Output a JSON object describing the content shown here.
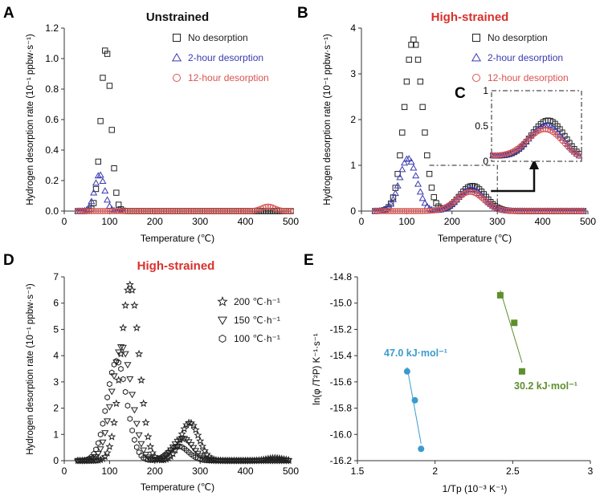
{
  "figure": {
    "panel_letters": [
      "A",
      "B",
      "C",
      "D",
      "E"
    ]
  },
  "colors": {
    "black": "#222222",
    "blue": "#3a3ab0",
    "red": "#d9534f",
    "title_red": "#d9302c",
    "teal": "#3b9bcf",
    "green": "#5e8f2e"
  },
  "chart_data": [
    {
      "id": "A",
      "type": "scatter",
      "title": "Unstrained",
      "xlabel": "Temperature (℃)",
      "ylabel": "Hydrogen desorption rate (10⁻¹ ppbw·s⁻¹)",
      "xlim": [
        0,
        500
      ],
      "ylim": [
        0,
        1.2
      ],
      "xticks": [
        "0",
        "100",
        "200",
        "300",
        "400",
        "500"
      ],
      "yticks": [
        "0.0",
        "0.2",
        "0.4",
        "0.6",
        "0.8",
        "1.0",
        "1.2"
      ],
      "legend": [
        "No desorption",
        "2-hour desorption",
        "12-hour desorption"
      ],
      "series": [
        {
          "name": "No desorption",
          "marker": "square",
          "peaks": [
            {
              "center": 92,
              "height": 1.07,
              "width": 11
            }
          ],
          "x_range": [
            30,
            500
          ]
        },
        {
          "name": "2-hour desorption",
          "marker": "triangle",
          "peaks": [
            {
              "center": 78,
              "height": 0.24,
              "width": 11
            }
          ],
          "x_range": [
            30,
            130
          ]
        },
        {
          "name": "12-hour desorption",
          "marker": "circle",
          "peaks": [
            {
              "center": 450,
              "height": 0.03,
              "width": 14
            }
          ],
          "x_range": [
            30,
            500
          ]
        }
      ]
    },
    {
      "id": "B",
      "type": "scatter",
      "title": "High-strained",
      "xlabel": "Temperature (℃)",
      "ylabel": "Hydrogen desorption rate (10⁻¹ ppbw·s⁻¹)",
      "xlim": [
        0,
        500
      ],
      "ylim": [
        0,
        4
      ],
      "xticks": [
        "0",
        "100",
        "200",
        "300",
        "400",
        "500"
      ],
      "yticks": [
        "0",
        "1",
        "2",
        "3",
        "4"
      ],
      "legend": [
        "No desorption",
        "2-hour desorption",
        "12-hour desorption"
      ],
      "series": [
        {
          "name": "No desorption",
          "marker": "square",
          "peaks": [
            {
              "center": 115,
              "height": 3.75,
              "width": 20
            },
            {
              "center": 245,
              "height": 0.55,
              "width": 28
            }
          ],
          "x_range": [
            30,
            490
          ]
        },
        {
          "name": "2-hour desorption",
          "marker": "triangle",
          "peaks": [
            {
              "center": 103,
              "height": 1.15,
              "width": 19
            },
            {
              "center": 242,
              "height": 0.48,
              "width": 28
            }
          ],
          "x_range": [
            30,
            490
          ]
        },
        {
          "name": "12-hour desorption",
          "marker": "circle",
          "peaks": [
            {
              "center": 240,
              "height": 0.42,
              "width": 30
            }
          ],
          "x_range": [
            30,
            490
          ]
        }
      ]
    },
    {
      "id": "C",
      "type": "scatter",
      "title": "",
      "inset_of": "B",
      "xlim": [
        150,
        300
      ],
      "ylim": [
        0,
        1
      ],
      "yticks": [
        "0",
        "0.5",
        "1"
      ]
    },
    {
      "id": "D",
      "type": "scatter",
      "title": "High-strained",
      "xlabel": "Temperature (℃)",
      "ylabel": "Hydrogen desorption rate (10⁻¹ ppbw·s⁻¹)",
      "xlim": [
        0,
        500
      ],
      "ylim": [
        0,
        7
      ],
      "xticks": [
        "0",
        "100",
        "200",
        "300",
        "400",
        "500"
      ],
      "yticks": [
        "0",
        "1",
        "2",
        "3",
        "4",
        "5",
        "6",
        "7"
      ],
      "legend": [
        "200 ℃·h⁻¹",
        "150 ℃·h⁻¹",
        "100 ℃·h⁻¹"
      ],
      "series": [
        {
          "name": "200 ℃·h⁻¹",
          "marker": "star",
          "peaks": [
            {
              "center": 145,
              "height": 6.7,
              "width": 20
            },
            {
              "center": 277,
              "height": 1.45,
              "width": 20
            },
            {
              "center": 465,
              "height": 0.1,
              "width": 18
            }
          ],
          "x_range": [
            30,
            495
          ]
        },
        {
          "name": "150 ℃·h⁻¹",
          "marker": "triangle-down",
          "peaks": [
            {
              "center": 127,
              "height": 4.35,
              "width": 22
            },
            {
              "center": 262,
              "height": 0.85,
              "width": 22
            }
          ],
          "x_range": [
            30,
            495
          ]
        },
        {
          "name": "100 ℃·h⁻¹",
          "marker": "hexagon",
          "peaks": [
            {
              "center": 116,
              "height": 3.8,
              "width": 22
            },
            {
              "center": 252,
              "height": 0.55,
              "width": 22
            }
          ],
          "x_range": [
            30,
            495
          ]
        }
      ]
    },
    {
      "id": "E",
      "type": "scatter",
      "title": "",
      "xlabel": "1/Tp (10⁻³ K⁻¹)",
      "ylabel": "ln(φ /T²P) K⁻¹·s⁻¹",
      "xlim": [
        1.5,
        3
      ],
      "ylim": [
        -16.2,
        -14.8
      ],
      "xticks": [
        "1.5",
        "2",
        "2.5",
        "3"
      ],
      "yticks": [
        "-14.8",
        "-15.0",
        "-15.2",
        "-15.4",
        "-15.6",
        "-15.8",
        "-16.0",
        "-16.2"
      ],
      "annotations": [
        "47.0 kJ·mol⁻¹",
        "30.2 kJ·mol⁻¹"
      ],
      "series": [
        {
          "name": "47.0 kJ·mol⁻¹",
          "marker": "circle-filled",
          "x": [
            1.82,
            1.87,
            1.91
          ],
          "y": [
            -15.52,
            -15.74,
            -16.11
          ]
        },
        {
          "name": "30.2 kJ·mol⁻¹",
          "marker": "square-filled",
          "x": [
            2.42,
            2.51,
            2.56
          ],
          "y": [
            -14.94,
            -15.15,
            -15.52
          ]
        }
      ]
    }
  ]
}
